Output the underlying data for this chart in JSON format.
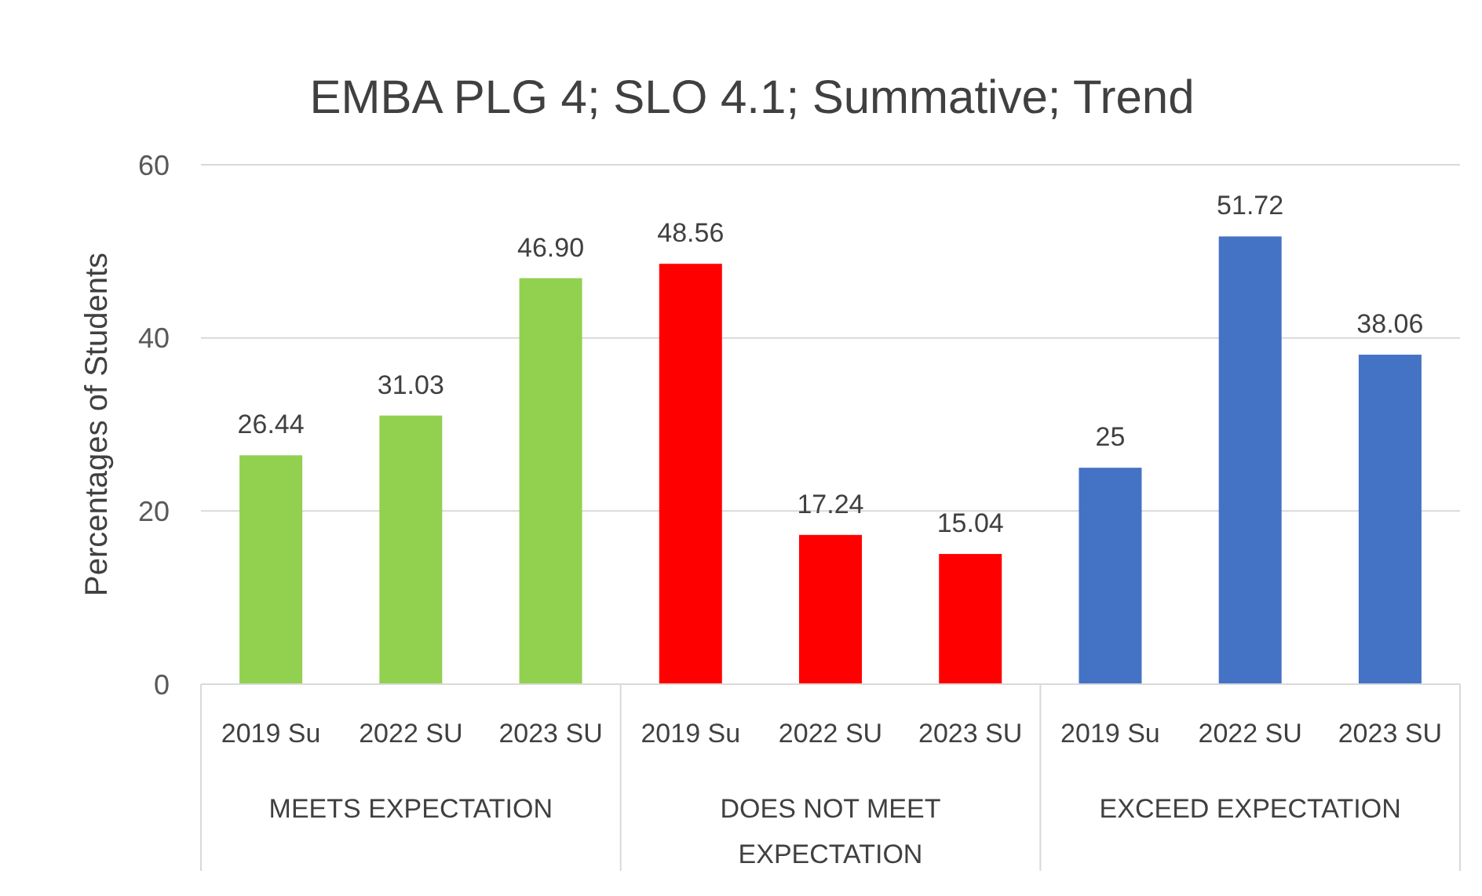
{
  "chart_data": {
    "type": "bar",
    "title": "EMBA PLG 4; SLO 4.1; Summative; Trend",
    "ylabel": "Percentages of Students",
    "categories": [
      "2019 Su",
      "2022 SU",
      "2023 SU",
      "2019 Su",
      "2022 SU",
      "2023 SU",
      "2019 Su",
      "2022 SU",
      "2023 SU"
    ],
    "values": [
      26.44,
      31.03,
      46.9,
      48.56,
      17.24,
      15.04,
      25,
      51.72,
      38.06
    ],
    "colors": [
      "#92d050",
      "#92d050",
      "#92d050",
      "#ff0000",
      "#ff0000",
      "#ff0000",
      "#4472c4",
      "#4472c4",
      "#4472c4"
    ],
    "value_labels": [
      "26.44",
      "31.03",
      "46.90",
      "48.56",
      "17.24",
      "15.04",
      "25",
      "51.72",
      "38.06"
    ],
    "annotations": [
      "MEETS EXPECTATION",
      "DOES NOT MEET EXPECTATION",
      "EXCEED EXPECTATION"
    ],
    "ylim": [
      0,
      60
    ],
    "yticks": [
      0,
      20,
      40,
      60
    ],
    "grid": "y"
  }
}
